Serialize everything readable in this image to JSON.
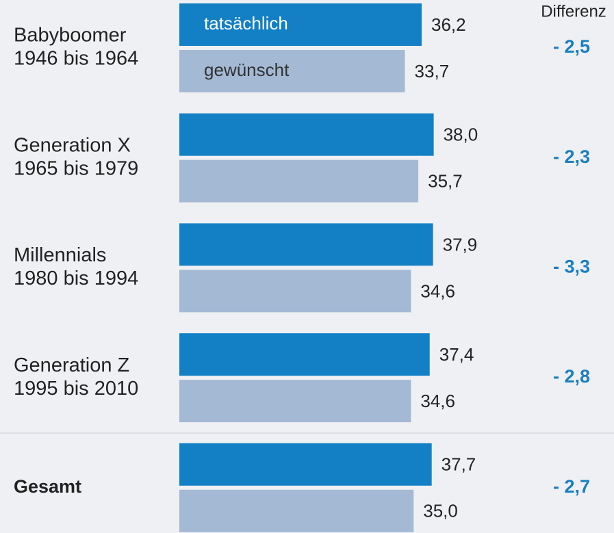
{
  "chart_data": {
    "type": "bar",
    "orientation": "horizontal",
    "categories": [
      "Babyboomer",
      "Generation X",
      "Millennials",
      "Generation Z",
      "Gesamt"
    ],
    "subcategories": [
      "1946 bis 1964",
      "1965 bis 1979",
      "1980 bis 1994",
      "1995 bis 2010",
      null
    ],
    "series": [
      {
        "name": "tatsächlich",
        "color": "#1380c5",
        "values": [
          36.2,
          38.0,
          37.9,
          37.4,
          37.7
        ],
        "value_labels": [
          "36,2",
          "38,0",
          "37,9",
          "37,4",
          "37,7"
        ]
      },
      {
        "name": "gewünscht",
        "color": "#a4b9d4",
        "values": [
          33.7,
          35.7,
          34.6,
          34.6,
          35.0
        ],
        "value_labels": [
          "33,7",
          "35,7",
          "34,6",
          "34,6",
          "35,0"
        ]
      }
    ],
    "difference_header": "Differenz",
    "differences": [
      -2.5,
      -2.3,
      -3.3,
      -2.8,
      -2.7
    ],
    "difference_labels": [
      "- 2,5",
      "- 2,3",
      "- 3,3",
      "- 2,8",
      "- 2,7"
    ]
  }
}
